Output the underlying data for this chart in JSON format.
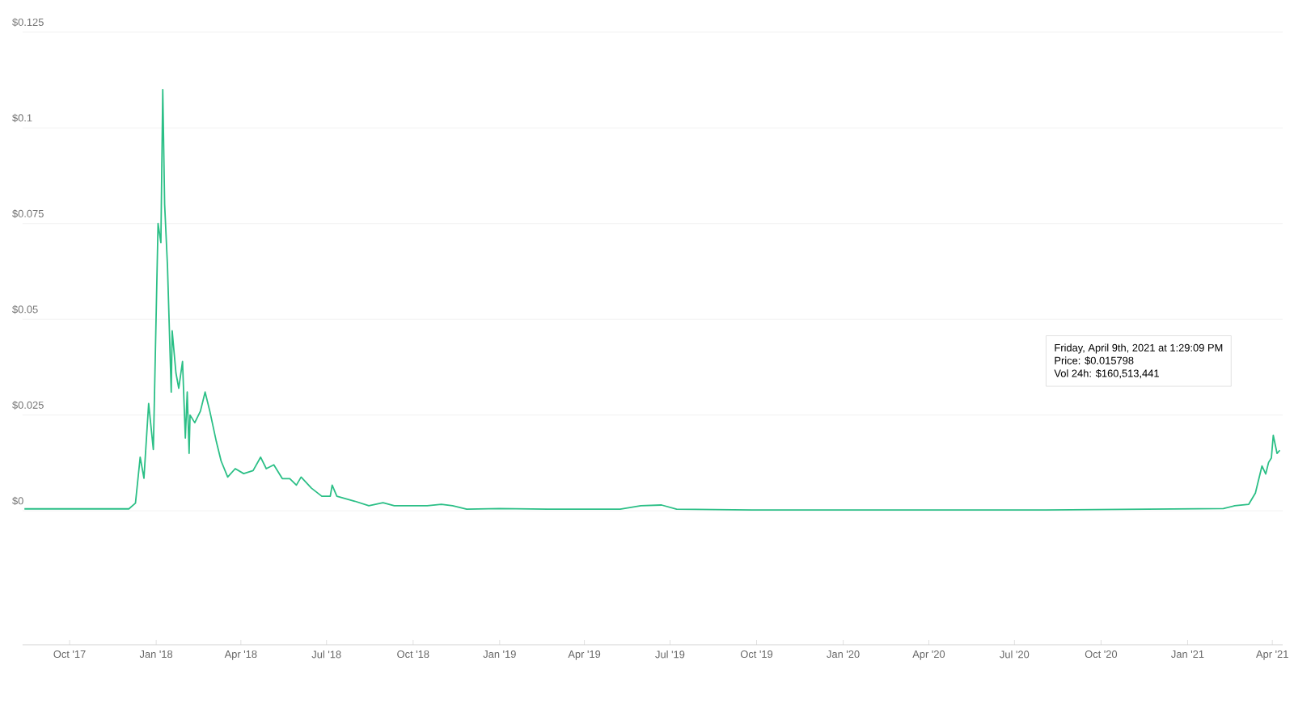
{
  "chart_data": {
    "type": "line",
    "x": [
      "2017-08-14",
      "2017-12-03",
      "2017-12-10",
      "2017-12-15",
      "2017-12-19",
      "2017-12-24",
      "2017-12-29",
      "2018-01-03",
      "2018-01-06",
      "2018-01-08",
      "2018-01-10",
      "2018-01-13",
      "2018-01-17",
      "2018-01-18",
      "2018-01-22",
      "2018-01-25",
      "2018-01-29",
      "2018-02-01",
      "2018-02-03",
      "2018-02-05",
      "2018-02-06",
      "2018-02-11",
      "2018-02-17",
      "2018-02-22",
      "2018-02-27",
      "2018-03-06",
      "2018-03-11",
      "2018-03-18",
      "2018-03-26",
      "2018-04-04",
      "2018-04-14",
      "2018-04-22",
      "2018-04-28",
      "2018-05-06",
      "2018-05-15",
      "2018-05-23",
      "2018-05-30",
      "2018-06-04",
      "2018-06-15",
      "2018-06-26",
      "2018-07-05",
      "2018-07-07",
      "2018-07-12",
      "2018-07-31",
      "2018-08-15",
      "2018-08-30",
      "2018-09-11",
      "2018-10-16",
      "2018-10-31",
      "2018-11-12",
      "2018-11-27",
      "2019-01-01",
      "2019-02-21",
      "2019-05-09",
      "2019-05-31",
      "2019-06-22",
      "2019-07-08",
      "2019-09-26",
      "2020-08-03",
      "2021-02-08",
      "2021-02-20",
      "2021-03-07",
      "2021-03-14",
      "2021-03-21",
      "2021-03-25",
      "2021-03-28",
      "2021-03-31",
      "2021-04-02",
      "2021-04-06",
      "2021-04-09"
    ],
    "series": [
      {
        "color": "#2bbf86",
        "values": [
          0.0005,
          0.0005,
          0.002,
          0.014,
          0.0085,
          0.028,
          0.016,
          0.075,
          0.07,
          0.11,
          0.08,
          0.064,
          0.031,
          0.047,
          0.036,
          0.032,
          0.039,
          0.019,
          0.031,
          0.015,
          0.025,
          0.023,
          0.026,
          0.031,
          0.026,
          0.018,
          0.013,
          0.0088,
          0.011,
          0.0097,
          0.0105,
          0.014,
          0.011,
          0.012,
          0.0084,
          0.0084,
          0.0067,
          0.0088,
          0.0059,
          0.0038,
          0.0038,
          0.0067,
          0.0038,
          0.0025,
          0.0013,
          0.0021,
          0.0013,
          0.0013,
          0.0017,
          0.0013,
          0.0004,
          0.0006,
          0.0004,
          0.0004,
          0.0013,
          0.0015,
          0.0004,
          0.0002,
          0.0002,
          0.0006,
          0.0013,
          0.0017,
          0.0046,
          0.0117,
          0.0096,
          0.0126,
          0.0138,
          0.0197,
          0.015,
          0.015798
        ]
      }
    ],
    "xlim": [
      "2017-08-12",
      "2021-04-12"
    ],
    "ylim": [
      -0.035,
      0.125
    ],
    "xticks": [
      {
        "value": "2017-10-01",
        "label": "Oct '17"
      },
      {
        "value": "2018-01-01",
        "label": "Jan '18"
      },
      {
        "value": "2018-04-01",
        "label": "Apr '18"
      },
      {
        "value": "2018-07-01",
        "label": "Jul '18"
      },
      {
        "value": "2018-10-01",
        "label": "Oct '18"
      },
      {
        "value": "2019-01-01",
        "label": "Jan '19"
      },
      {
        "value": "2019-04-01",
        "label": "Apr '19"
      },
      {
        "value": "2019-07-01",
        "label": "Jul '19"
      },
      {
        "value": "2019-10-01",
        "label": "Oct '19"
      },
      {
        "value": "2020-01-01",
        "label": "Jan '20"
      },
      {
        "value": "2020-04-01",
        "label": "Apr '20"
      },
      {
        "value": "2020-07-01",
        "label": "Jul '20"
      },
      {
        "value": "2020-10-01",
        "label": "Oct '20"
      },
      {
        "value": "2021-01-01",
        "label": "Jan '21"
      },
      {
        "value": "2021-04-01",
        "label": "Apr '21"
      }
    ],
    "yticks": [
      {
        "value": 0,
        "label": "$0"
      },
      {
        "value": 0.025,
        "label": "$0.025"
      },
      {
        "value": 0.05,
        "label": "$0.05"
      },
      {
        "value": 0.075,
        "label": "$0.075"
      },
      {
        "value": 0.1,
        "label": "$0.1"
      },
      {
        "value": 0.125,
        "label": "$0.125"
      }
    ],
    "grid": "y",
    "line_style": "solid",
    "annotations": [
      "Friday, April 9th, 2021 at 1:29:09 PM",
      "Price: $0.015798",
      "Vol 24h: $160,513,441"
    ]
  }
}
